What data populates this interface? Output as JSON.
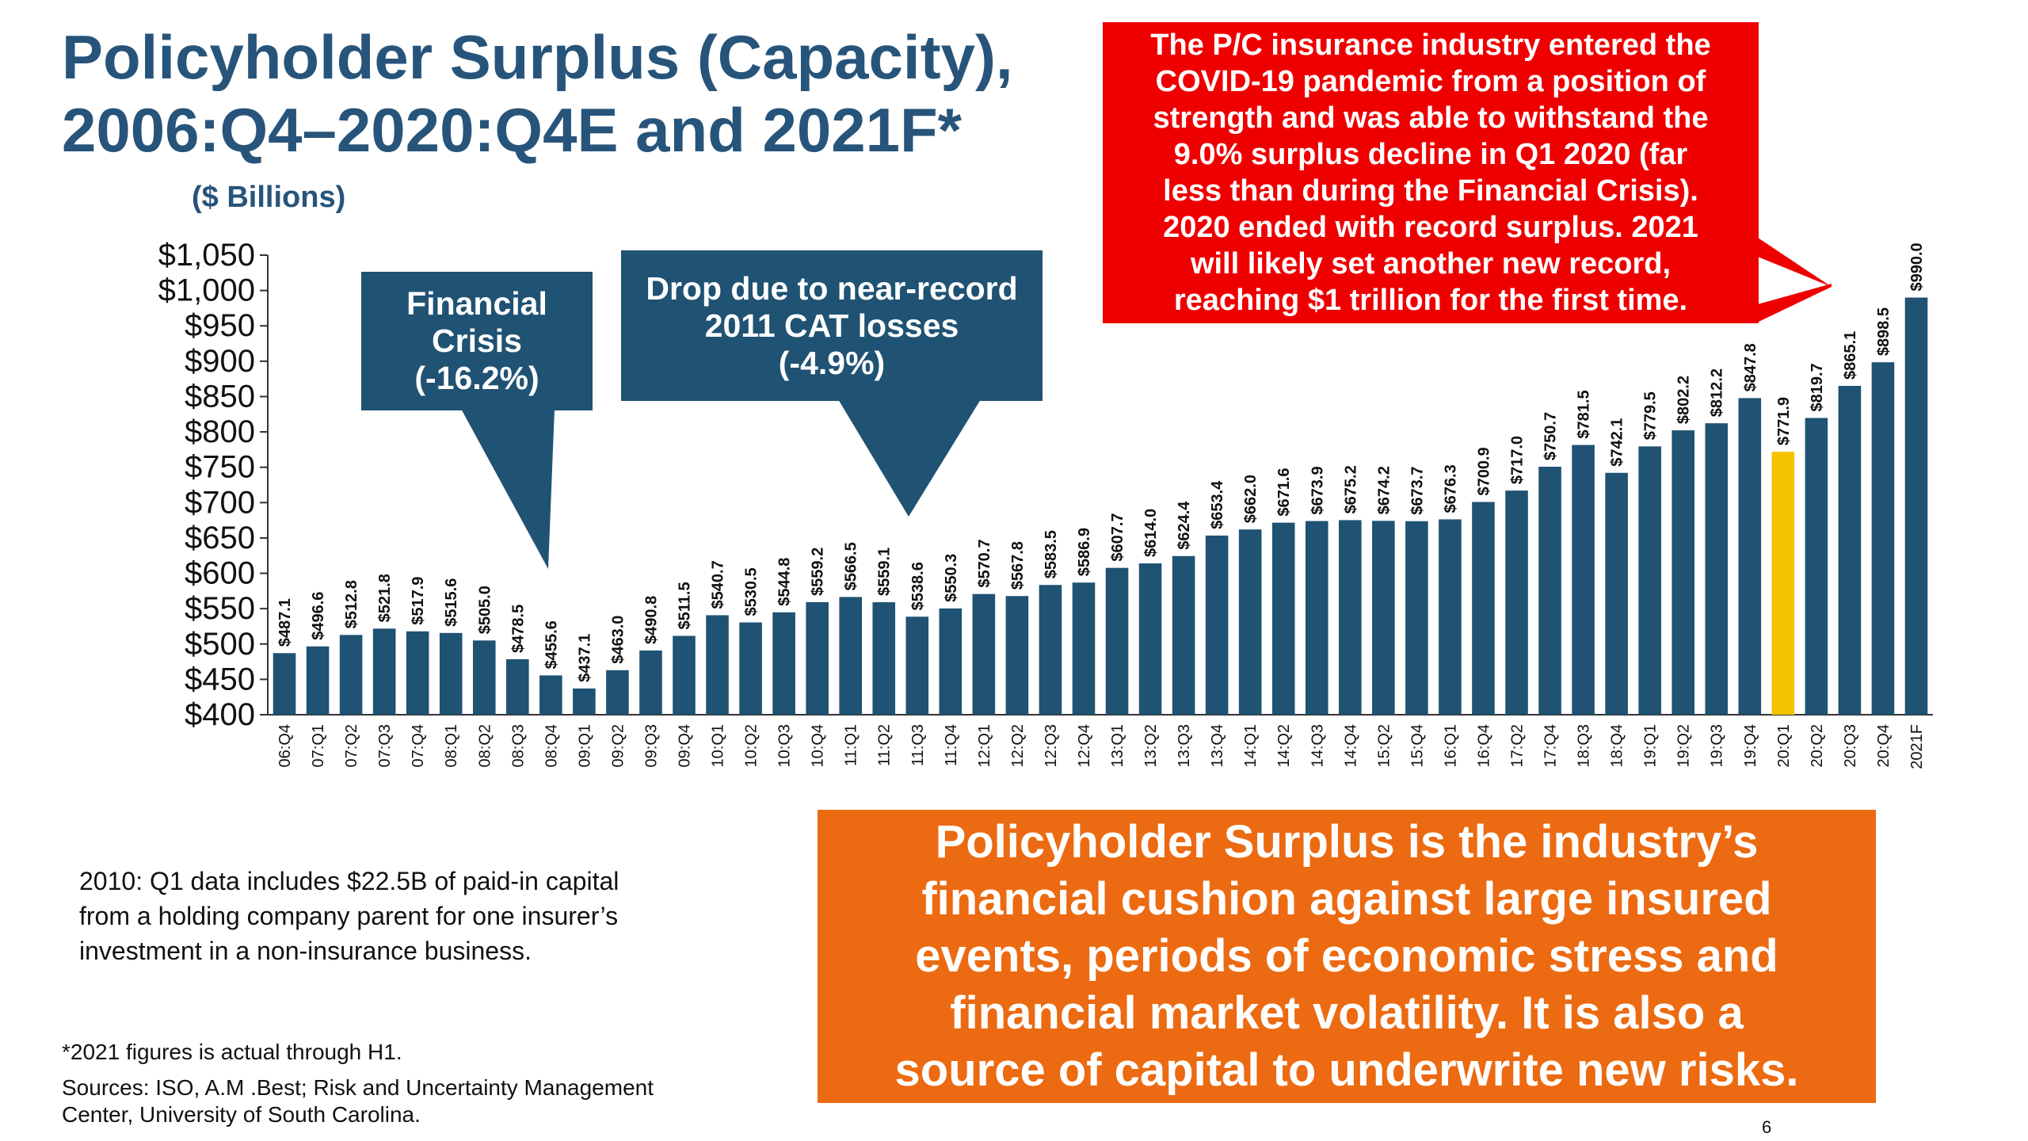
{
  "header": {
    "title_line1": "Policyholder Surplus (Capacity),",
    "title_line2": "2006:Q4–2020:Q4E and 2021F*",
    "subtitle": "($ Billions)"
  },
  "callouts": {
    "financial_crisis": "Financial\nCrisis\n(-16.2%)",
    "cat_losses": "Drop due to near-record\n2011 CAT losses\n(-4.9%)",
    "covid": "The P/C insurance industry entered the\nCOVID-19 pandemic from a position of\nstrength and was able to withstand the\n9.0% surplus decline in Q1 2020 (far\nless than during the Financial Crisis).\n2020 ended with record surplus. 2021\nwill likely set another new record,\nreaching $1 trillion for the first time.",
    "cushion": "Policyholder Surplus is the industry’s\nfinancial cushion against large insured\nevents, periods of economic stress and\nfinancial market volatility.  It is also a\nsource of capital to underwrite new risks."
  },
  "note": "2010: Q1 data includes $22.5B of paid-in capital from a holding company parent for one insurer’s investment in a non-insurance business.",
  "footnote": "*2021 figures is actual through H1.",
  "sources": "Sources: ISO, A.M .Best;  Risk and Uncertainty Management Center, University of South Carolina.",
  "page_number": "6",
  "colors": {
    "title": "#27547a",
    "bar": "#1f5273",
    "bar_highlight": "#f5c400",
    "callout_blue": "#1f5273",
    "callout_red": "#ee0000",
    "callout_orange": "#ec6a11"
  },
  "chart_data": {
    "type": "bar",
    "categories": [
      "06:Q4",
      "07:Q1",
      "07:Q2",
      "07:Q3",
      "07:Q4",
      "08:Q1",
      "08:Q2",
      "08:Q3",
      "08:Q4",
      "09:Q1",
      "09:Q2",
      "09:Q3",
      "09:Q4",
      "10:Q1",
      "10:Q2",
      "10:Q3",
      "10:Q4",
      "11:Q1",
      "11:Q2",
      "11:Q3",
      "11:Q4",
      "12:Q1",
      "12:Q2",
      "12:Q3",
      "12:Q4",
      "13:Q1",
      "13:Q2",
      "13:Q3",
      "13:Q4",
      "14:Q1",
      "14:Q2",
      "14:Q3",
      "14:Q4",
      "15:Q2",
      "15:Q4",
      "16:Q1",
      "16:Q4",
      "17:Q2",
      "17:Q4",
      "18:Q3",
      "18:Q4",
      "19:Q1",
      "19:Q2",
      "19:Q3",
      "19:Q4",
      "20:Q1",
      "20:Q2",
      "20:Q3",
      "20:Q4",
      "2021F"
    ],
    "values": [
      487.1,
      496.6,
      512.8,
      521.8,
      517.9,
      515.6,
      505.0,
      478.5,
      455.6,
      437.1,
      463.0,
      490.8,
      511.5,
      540.7,
      530.5,
      544.8,
      559.2,
      566.5,
      559.1,
      538.6,
      550.3,
      570.7,
      567.8,
      583.5,
      586.9,
      607.7,
      614.0,
      624.4,
      653.4,
      662.0,
      671.6,
      673.9,
      675.2,
      674.2,
      673.7,
      676.3,
      700.9,
      717.0,
      750.7,
      781.5,
      742.1,
      779.5,
      802.2,
      812.2,
      847.8,
      771.9,
      819.7,
      865.1,
      898.5,
      990.0
    ],
    "data_labels": [
      "$487.1",
      "$496.6",
      "$512.8",
      "$521.8",
      "$517.9",
      "$515.6",
      "$505.0",
      "$478.5",
      "$455.6",
      "$437.1",
      "$463.0",
      "$490.8",
      "$511.5",
      "$540.7",
      "$530.5",
      "$544.8",
      "$559.2",
      "$566.5",
      "$559.1",
      "$538.6",
      "$550.3",
      "$570.7",
      "$567.8",
      "$583.5",
      "$586.9",
      "$607.7",
      "$614.0",
      "$624.4",
      "$653.4",
      "$662.0",
      "$671.6",
      "$673.9",
      "$675.2",
      "$674.2",
      "$673.7",
      "$676.3",
      "$700.9",
      "$717.0",
      "$750.7",
      "$781.5",
      "$742.1",
      "$779.5",
      "$802.2",
      "$812.2",
      "$847.8",
      "$771.9",
      "$819.7",
      "$865.1",
      "$898.5",
      "$990.0"
    ],
    "highlight_index": 45,
    "ylim": [
      400,
      1050
    ],
    "yticks": [
      400,
      450,
      500,
      550,
      600,
      650,
      700,
      750,
      800,
      850,
      900,
      950,
      1000,
      1050
    ],
    "ytick_labels": [
      "$400",
      "$450",
      "$500",
      "$550",
      "$600",
      "$650",
      "$700",
      "$750",
      "$800",
      "$850",
      "$900",
      "$950",
      "$1,000",
      "$1,050"
    ],
    "xlabel": "",
    "ylabel": "",
    "grid": false,
    "legend": "none"
  }
}
